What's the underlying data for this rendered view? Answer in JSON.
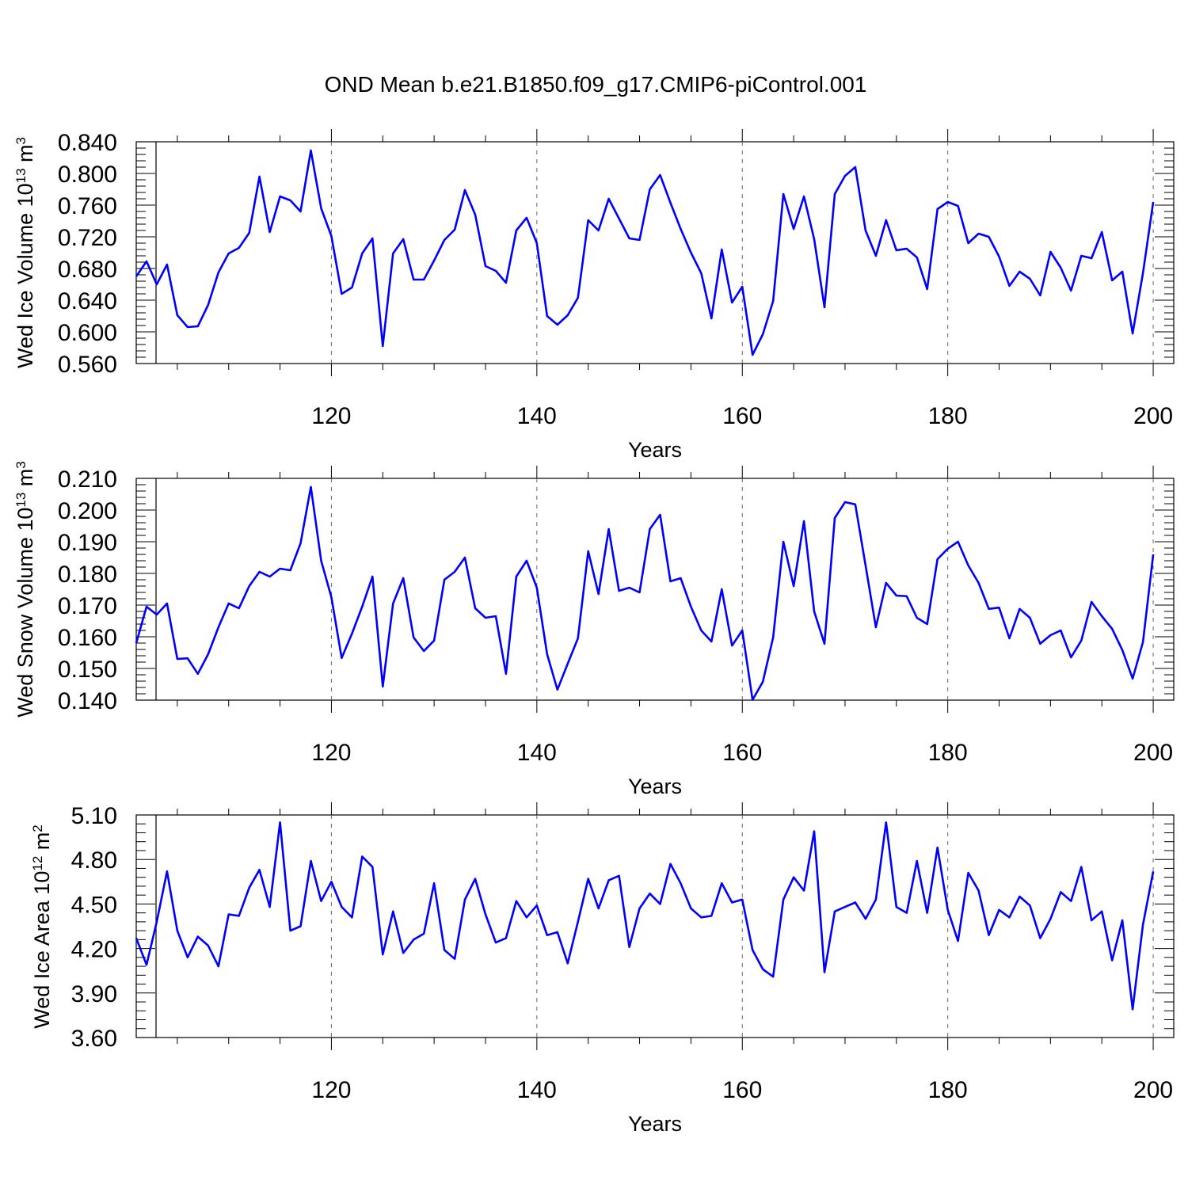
{
  "title": "OND Mean b.e21.B1850.f09_g17.CMIP6-piControl.001",
  "line_color": "#0000ff",
  "chart_data": [
    {
      "type": "line",
      "id": "ice-volume",
      "ylabel": "Wed Ice Volume 10",
      "ylabel_exp": "13",
      "ylabel_unit": "m",
      "ylabel_unit_exp": "3",
      "xlabel": "Years",
      "xlim": [
        101,
        202
      ],
      "ylim": [
        0.56,
        0.84
      ],
      "yticks": [
        0.56,
        0.6,
        0.64,
        0.68,
        0.72,
        0.76,
        0.8,
        0.84
      ],
      "ytick_labels": [
        "0.560",
        "0.600",
        "0.640",
        "0.680",
        "0.720",
        "0.760",
        "0.800",
        "0.840"
      ],
      "xticks": [
        120,
        140,
        160,
        180,
        200
      ],
      "xtick_labels": [
        "120",
        "140",
        "160",
        "180",
        "200"
      ],
      "x_start": 101,
      "values": [
        0.67,
        0.689,
        0.66,
        0.685,
        0.621,
        0.606,
        0.607,
        0.634,
        0.675,
        0.699,
        0.706,
        0.725,
        0.796,
        0.726,
        0.771,
        0.766,
        0.752,
        0.829,
        0.756,
        0.721,
        0.648,
        0.656,
        0.699,
        0.718,
        0.582,
        0.699,
        0.717,
        0.666,
        0.666,
        0.69,
        0.716,
        0.729,
        0.779,
        0.748,
        0.683,
        0.677,
        0.662,
        0.728,
        0.744,
        0.712,
        0.62,
        0.609,
        0.621,
        0.643,
        0.741,
        0.728,
        0.768,
        0.743,
        0.718,
        0.716,
        0.78,
        0.798,
        0.763,
        0.73,
        0.7,
        0.674,
        0.617,
        0.704,
        0.637,
        0.657,
        0.571,
        0.597,
        0.639,
        0.774,
        0.73,
        0.771,
        0.717,
        0.631,
        0.774,
        0.797,
        0.808,
        0.728,
        0.696,
        0.741,
        0.703,
        0.705,
        0.694,
        0.654,
        0.755,
        0.764,
        0.759,
        0.712,
        0.724,
        0.72,
        0.695,
        0.658,
        0.676,
        0.667,
        0.646,
        0.701,
        0.681,
        0.652,
        0.696,
        0.693,
        0.726,
        0.665,
        0.676,
        0.598,
        0.674,
        0.764
      ]
    },
    {
      "type": "line",
      "id": "snow-volume",
      "ylabel": "Wed Snow Volume 10",
      "ylabel_exp": "13",
      "ylabel_unit": "m",
      "ylabel_unit_exp": "3",
      "xlabel": "Years",
      "xlim": [
        101,
        202
      ],
      "ylim": [
        0.14,
        0.21
      ],
      "yticks": [
        0.14,
        0.15,
        0.16,
        0.17,
        0.18,
        0.19,
        0.2,
        0.21
      ],
      "ytick_labels": [
        "0.140",
        "0.150",
        "0.160",
        "0.170",
        "0.180",
        "0.190",
        "0.200",
        "0.210"
      ],
      "xticks": [
        120,
        140,
        160,
        180,
        200
      ],
      "xtick_labels": [
        "120",
        "140",
        "160",
        "180",
        "200"
      ],
      "x_start": 101,
      "values": [
        0.158,
        0.1695,
        0.167,
        0.1705,
        0.153,
        0.1532,
        0.1483,
        0.1545,
        0.163,
        0.1705,
        0.169,
        0.176,
        0.1805,
        0.179,
        0.1815,
        0.181,
        0.1895,
        0.2073,
        0.184,
        0.1725,
        0.1533,
        0.161,
        0.1695,
        0.179,
        0.1443,
        0.1705,
        0.1785,
        0.1598,
        0.1555,
        0.1588,
        0.178,
        0.1805,
        0.185,
        0.169,
        0.166,
        0.1665,
        0.1483,
        0.179,
        0.184,
        0.1755,
        0.1545,
        0.1433,
        0.1515,
        0.1595,
        0.187,
        0.1735,
        0.194,
        0.1745,
        0.1755,
        0.174,
        0.194,
        0.1985,
        0.1775,
        0.1785,
        0.1695,
        0.162,
        0.1585,
        0.175,
        0.1572,
        0.162,
        0.1401,
        0.1458,
        0.1598,
        0.19,
        0.176,
        0.1965,
        0.168,
        0.1578,
        0.1975,
        0.2025,
        0.2018,
        0.1825,
        0.163,
        0.177,
        0.173,
        0.1728,
        0.166,
        0.164,
        0.1845,
        0.1878,
        0.19,
        0.1825,
        0.177,
        0.1688,
        0.1692,
        0.1595,
        0.1688,
        0.166,
        0.1578,
        0.1605,
        0.162,
        0.1535,
        0.1588,
        0.171,
        0.1665,
        0.1625,
        0.1558,
        0.1468,
        0.1583,
        0.186
      ]
    },
    {
      "type": "line",
      "id": "ice-area",
      "ylabel": "Wed Ice Area 10",
      "ylabel_exp": "12",
      "ylabel_unit": "m",
      "ylabel_unit_exp": "2",
      "xlabel": "Years",
      "xlim": [
        101,
        202
      ],
      "ylim": [
        3.6,
        5.1
      ],
      "yticks": [
        3.6,
        3.9,
        4.2,
        4.5,
        4.8,
        5.1
      ],
      "ytick_labels": [
        "3.60",
        "3.90",
        "4.20",
        "4.50",
        "4.80",
        "5.10"
      ],
      "xticks": [
        120,
        140,
        160,
        180,
        200
      ],
      "xtick_labels": [
        "120",
        "140",
        "160",
        "180",
        "200"
      ],
      "x_start": 101,
      "values": [
        4.27,
        4.09,
        4.38,
        4.72,
        4.32,
        4.14,
        4.28,
        4.22,
        4.08,
        4.43,
        4.42,
        4.61,
        4.73,
        4.48,
        5.05,
        4.32,
        4.35,
        4.79,
        4.52,
        4.65,
        4.48,
        4.41,
        4.82,
        4.75,
        4.16,
        4.45,
        4.17,
        4.26,
        4.3,
        4.64,
        4.19,
        4.13,
        4.53,
        4.67,
        4.43,
        4.24,
        4.27,
        4.52,
        4.41,
        4.49,
        4.29,
        4.31,
        4.1,
        4.38,
        4.67,
        4.47,
        4.66,
        4.69,
        4.21,
        4.47,
        4.57,
        4.5,
        4.77,
        4.64,
        4.47,
        4.41,
        4.42,
        4.64,
        4.51,
        4.53,
        4.19,
        4.06,
        4.01,
        4.53,
        4.68,
        4.59,
        4.99,
        4.04,
        4.45,
        4.48,
        4.51,
        4.4,
        4.53,
        5.05,
        4.48,
        4.44,
        4.79,
        4.44,
        4.88,
        4.46,
        4.25,
        4.71,
        4.59,
        4.29,
        4.46,
        4.41,
        4.55,
        4.49,
        4.27,
        4.4,
        4.58,
        4.52,
        4.75,
        4.39,
        4.45,
        4.12,
        4.39,
        3.79,
        4.36,
        4.72
      ]
    }
  ]
}
